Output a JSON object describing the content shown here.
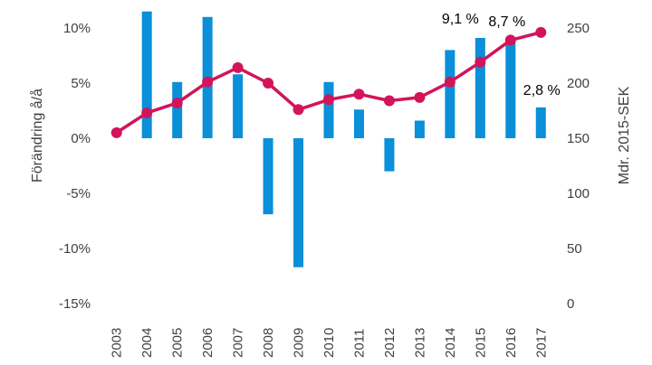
{
  "chart_data": {
    "type": "bar+line",
    "categories": [
      "2003",
      "2004",
      "2005",
      "2006",
      "2007",
      "2008",
      "2009",
      "2010",
      "2011",
      "2012",
      "2013",
      "2014",
      "2015",
      "2016",
      "2017"
    ],
    "series": [
      {
        "kind": "bar",
        "axis": "left",
        "color": "#0a8fd8",
        "values": [
          null,
          11.5,
          5.1,
          11.0,
          5.8,
          -6.9,
          -11.7,
          5.1,
          2.6,
          -3.0,
          1.6,
          8.0,
          9.1,
          8.7,
          2.8
        ]
      },
      {
        "kind": "line",
        "axis": "right",
        "color": "#d2145a",
        "values": [
          155,
          173,
          182,
          201,
          214,
          200,
          176,
          185,
          190,
          184,
          187,
          201,
          219,
          239,
          246
        ]
      }
    ],
    "yleft": {
      "label": "Förändring å/å",
      "min": -15,
      "max": 10,
      "ticks": [
        "-15%",
        "-10%",
        "-5%",
        "0%",
        "5%",
        "10%"
      ]
    },
    "yright": {
      "label": "Mdr. 2015-SEK",
      "min": 0,
      "max": 250,
      "ticks": [
        "0",
        "50",
        "100",
        "150",
        "200",
        "250"
      ]
    },
    "annotations": [
      {
        "category": "2015",
        "text": "9,1 %"
      },
      {
        "category": "2016",
        "text": "8,7 %"
      },
      {
        "category": "2017",
        "text": "2,8 %"
      }
    ],
    "grid": false,
    "legend": "none"
  }
}
